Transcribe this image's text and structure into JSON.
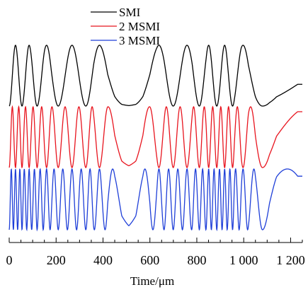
{
  "chart_data": {
    "type": "line",
    "title": "",
    "xlabel": "Time/μm",
    "ylabel": "",
    "xlim": [
      0,
      1250
    ],
    "xticks": [
      0,
      200,
      400,
      600,
      800,
      1000,
      1200
    ],
    "xtick_labels": [
      "0",
      "200",
      "400",
      "600",
      "800",
      "1 000",
      "1 200"
    ],
    "minor_xtick_step": 50,
    "grid": false,
    "legend_position": "top-center",
    "y_axis_visible": false,
    "series": [
      {
        "name": "SMI",
        "color": "#000000",
        "signal": "1 - cos(2π·N·f(t))",
        "fringe_multiplier": 1,
        "offset": 0.5,
        "x": [
          0,
          30,
          60,
          90,
          120,
          150,
          180,
          210,
          240,
          270,
          300,
          330,
          360,
          390,
          420,
          450,
          480,
          510,
          540,
          570,
          600,
          630,
          660,
          690,
          720,
          750,
          780,
          810,
          840,
          870,
          900,
          930,
          960,
          990,
          1020,
          1050,
          1080,
          1110,
          1140,
          1170,
          1200,
          1230,
          1250
        ],
        "fringe_phase": [
          0.0,
          0.22,
          0.43,
          0.62,
          0.79,
          0.94,
          1.07,
          1.18,
          1.28,
          1.38,
          1.48,
          1.58,
          1.69,
          1.78,
          1.86,
          1.91,
          1.94,
          1.95,
          1.94,
          1.91,
          1.86,
          1.79,
          1.7,
          1.6,
          1.5,
          1.4,
          1.3,
          1.18,
          1.04,
          0.87,
          0.7,
          0.52,
          0.35,
          0.22,
          0.12,
          0.05,
          0.0,
          -0.03,
          -0.05,
          -0.06,
          -0.07,
          -0.08,
          -0.08
        ]
      },
      {
        "name": "2 MSMI",
        "color": "#e8141e",
        "signal": "1 - cos(2π·N·f(t))",
        "fringe_multiplier": 2,
        "offset": 0.25
      },
      {
        "name": "3 MSMI",
        "color": "#1f3fd8",
        "signal": "1 - cos(2π·N·f(t))",
        "fringe_multiplier": 3,
        "offset": 0.0
      }
    ]
  }
}
